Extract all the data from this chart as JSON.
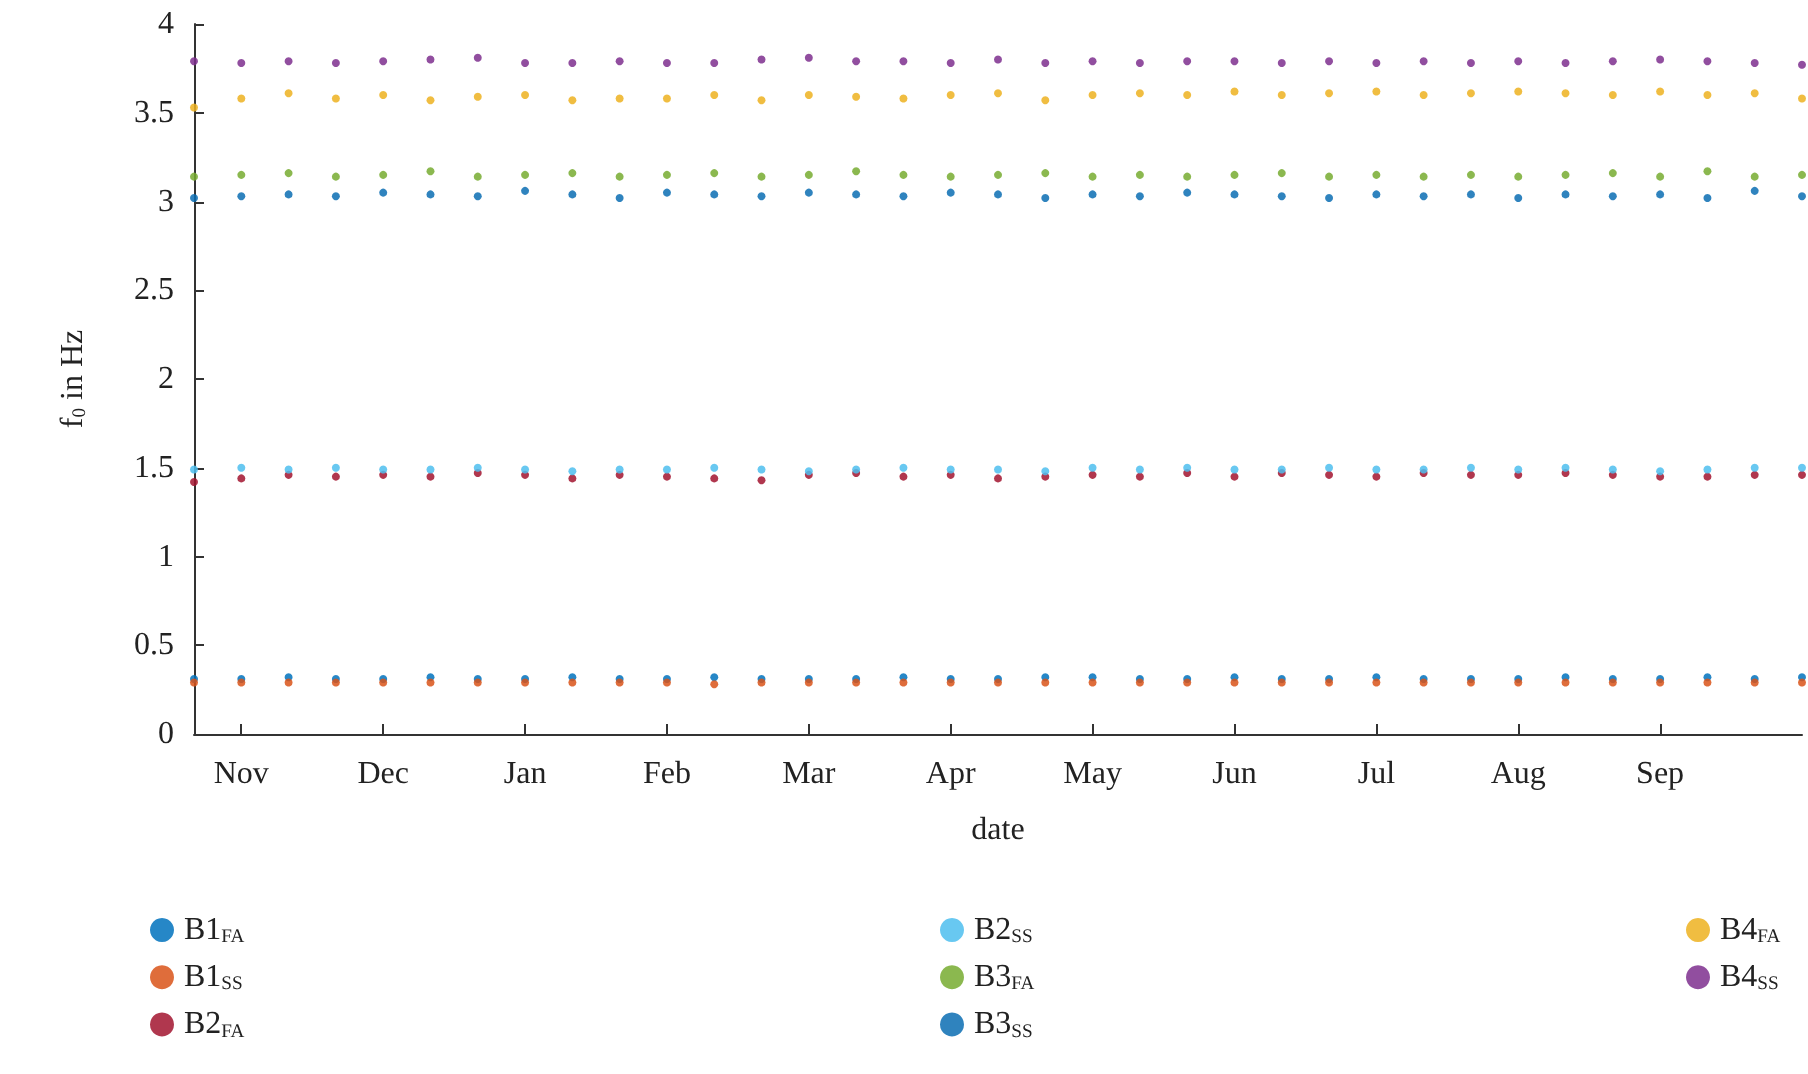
{
  "chart_data": {
    "type": "scatter",
    "xlabel": "date",
    "ylabel": "f$_{0}$ in Hz",
    "categories": [
      null,
      "Nov",
      null,
      null,
      "Dec",
      null,
      null,
      "Jan",
      null,
      null,
      "Feb",
      null,
      null,
      "Mar",
      null,
      null,
      "Apr",
      null,
      null,
      "May",
      null,
      null,
      "Jun",
      null,
      null,
      "Jul",
      null,
      null,
      "Aug",
      null,
      null,
      "Sep",
      null,
      null,
      null
    ],
    "series": [
      {
        "name": "B1$_{FA}$",
        "color": "#0072bd",
        "values": [
          0.31,
          0.31,
          0.32,
          0.31,
          0.31,
          0.32,
          0.31,
          0.31,
          0.32,
          0.31,
          0.31,
          0.32,
          0.31,
          0.31,
          0.31,
          0.32,
          0.31,
          0.31,
          0.32,
          0.32,
          0.31,
          0.31,
          0.32,
          0.31,
          0.31,
          0.32,
          0.31,
          0.31,
          0.31,
          0.32,
          0.31,
          0.31,
          0.32,
          0.31,
          0.32
        ]
      },
      {
        "name": "B1$_{SS}$",
        "color": "#d95319",
        "values": [
          0.29,
          0.29,
          0.29,
          0.29,
          0.29,
          0.29,
          0.29,
          0.29,
          0.29,
          0.29,
          0.29,
          0.28,
          0.29,
          0.29,
          0.29,
          0.29,
          0.29,
          0.29,
          0.29,
          0.29,
          0.29,
          0.29,
          0.29,
          0.29,
          0.29,
          0.29,
          0.29,
          0.29,
          0.29,
          0.29,
          0.29,
          0.29,
          0.29,
          0.29,
          0.29
        ]
      },
      {
        "name": "B2$_{FA}$",
        "color": "#a2142f",
        "values": [
          1.42,
          1.44,
          1.46,
          1.45,
          1.46,
          1.45,
          1.47,
          1.46,
          1.44,
          1.46,
          1.45,
          1.44,
          1.43,
          1.46,
          1.47,
          1.45,
          1.46,
          1.44,
          1.45,
          1.46,
          1.45,
          1.47,
          1.45,
          1.47,
          1.46,
          1.45,
          1.47,
          1.46,
          1.46,
          1.47,
          1.46,
          1.45,
          1.45,
          1.46,
          1.46
        ]
      },
      {
        "name": "B2$_{SS}$",
        "color": "#4dbeee",
        "values": [
          1.49,
          1.5,
          1.49,
          1.5,
          1.49,
          1.49,
          1.5,
          1.49,
          1.48,
          1.49,
          1.49,
          1.5,
          1.49,
          1.48,
          1.49,
          1.5,
          1.49,
          1.49,
          1.48,
          1.5,
          1.49,
          1.5,
          1.49,
          1.49,
          1.5,
          1.49,
          1.49,
          1.5,
          1.49,
          1.5,
          1.49,
          1.48,
          1.49,
          1.5,
          1.5
        ]
      },
      {
        "name": "B3$_{FA}$",
        "color": "#77ac30",
        "values": [
          3.14,
          3.15,
          3.16,
          3.14,
          3.15,
          3.17,
          3.14,
          3.15,
          3.16,
          3.14,
          3.15,
          3.16,
          3.14,
          3.15,
          3.17,
          3.15,
          3.14,
          3.15,
          3.16,
          3.14,
          3.15,
          3.14,
          3.15,
          3.16,
          3.14,
          3.15,
          3.14,
          3.15,
          3.14,
          3.15,
          3.16,
          3.14,
          3.17,
          3.14,
          3.15
        ]
      },
      {
        "name": "B3$_{SS}$",
        "color": "#0b6db3",
        "values": [
          3.02,
          3.03,
          3.04,
          3.03,
          3.05,
          3.04,
          3.03,
          3.06,
          3.04,
          3.02,
          3.05,
          3.04,
          3.03,
          3.05,
          3.04,
          3.03,
          3.05,
          3.04,
          3.02,
          3.04,
          3.03,
          3.05,
          3.04,
          3.03,
          3.02,
          3.04,
          3.03,
          3.04,
          3.02,
          3.04,
          3.03,
          3.04,
          3.02,
          3.06,
          3.03
        ]
      },
      {
        "name": "B4$_{FA}$",
        "color": "#edb120",
        "values": [
          3.53,
          3.58,
          3.61,
          3.58,
          3.6,
          3.57,
          3.59,
          3.6,
          3.57,
          3.58,
          3.58,
          3.6,
          3.57,
          3.6,
          3.59,
          3.58,
          3.6,
          3.61,
          3.57,
          3.6,
          3.61,
          3.6,
          3.62,
          3.6,
          3.61,
          3.62,
          3.6,
          3.61,
          3.62,
          3.61,
          3.6,
          3.62,
          3.6,
          3.61,
          3.58
        ]
      },
      {
        "name": "B4$_{SS}$",
        "color": "#7e2f8e",
        "values": [
          3.79,
          3.78,
          3.79,
          3.78,
          3.79,
          3.8,
          3.81,
          3.78,
          3.78,
          3.79,
          3.78,
          3.78,
          3.8,
          3.81,
          3.79,
          3.79,
          3.78,
          3.8,
          3.78,
          3.79,
          3.78,
          3.79,
          3.79,
          3.78,
          3.79,
          3.78,
          3.79,
          3.78,
          3.79,
          3.78,
          3.79,
          3.8,
          3.79,
          3.78,
          3.77
        ]
      }
    ],
    "ylim": [
      0,
      4
    ],
    "yticks": [
      0,
      0.5,
      1,
      1.5,
      2,
      2.5,
      3,
      3.5,
      4
    ],
    "grid": false,
    "legend": "bottom",
    "marker": "circle"
  }
}
